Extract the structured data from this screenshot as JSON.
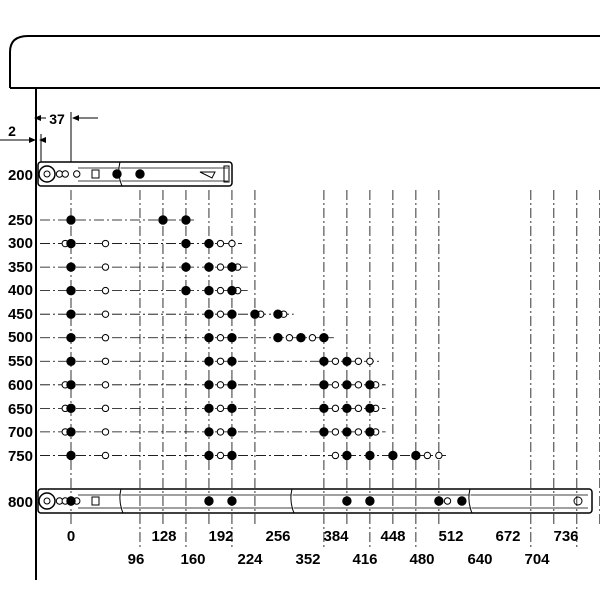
{
  "dimensions": {
    "offset_small": "2",
    "offset_first_hole": "37"
  },
  "row_labels": [
    "200",
    "250",
    "300",
    "350",
    "400",
    "450",
    "500",
    "550",
    "600",
    "650",
    "700",
    "750",
    "800"
  ],
  "columns_top": [
    "0",
    "128",
    "192",
    "256",
    "384",
    "448",
    "512",
    "672",
    "736"
  ],
  "columns_bottom": [
    "96",
    "160",
    "224",
    "352",
    "416",
    "480",
    "640",
    "704"
  ],
  "column_values": [
    0,
    96,
    128,
    160,
    192,
    224,
    256,
    352,
    384,
    416,
    448,
    480,
    512,
    640,
    672,
    704,
    736
  ],
  "rows": [
    {
      "length": 200,
      "closed": [
        64,
        96
      ],
      "open": [
        -16,
        -8,
        8
      ]
    },
    {
      "length": 250,
      "closed": [
        0,
        128,
        160
      ],
      "open": []
    },
    {
      "length": 300,
      "closed": [
        0,
        160,
        192
      ],
      "open": [
        -8,
        48,
        208,
        224
      ]
    },
    {
      "length": 350,
      "closed": [
        0,
        160,
        192,
        224
      ],
      "open": [
        48,
        208,
        232
      ]
    },
    {
      "length": 400,
      "closed": [
        0,
        160,
        192,
        224
      ],
      "open": [
        48,
        208,
        232
      ]
    },
    {
      "length": 450,
      "closed": [
        0,
        192,
        224,
        256,
        288
      ],
      "open": [
        48,
        208,
        264,
        296
      ]
    },
    {
      "length": 500,
      "closed": [
        0,
        192,
        224,
        288,
        320,
        352
      ],
      "open": [
        48,
        208,
        304,
        336
      ]
    },
    {
      "length": 550,
      "closed": [
        0,
        192,
        224,
        352,
        384
      ],
      "open": [
        48,
        208,
        368,
        400,
        416
      ]
    },
    {
      "length": 600,
      "closed": [
        0,
        192,
        224,
        352,
        384,
        416
      ],
      "open": [
        -8,
        48,
        208,
        368,
        400,
        424
      ]
    },
    {
      "length": 650,
      "closed": [
        0,
        192,
        224,
        352,
        384,
        416
      ],
      "open": [
        -8,
        48,
        208,
        368,
        400,
        424
      ]
    },
    {
      "length": 700,
      "closed": [
        0,
        192,
        224,
        352,
        384,
        416
      ],
      "open": [
        -8,
        48,
        208,
        368,
        400,
        424
      ]
    },
    {
      "length": 750,
      "closed": [
        0,
        192,
        224,
        384,
        416,
        448,
        480
      ],
      "open": [
        48,
        208,
        368,
        496,
        512
      ]
    },
    {
      "length": 800,
      "closed": [
        0,
        192,
        224,
        384,
        416,
        512,
        544
      ],
      "open": [
        -16,
        -8,
        8,
        524
      ]
    }
  ]
}
